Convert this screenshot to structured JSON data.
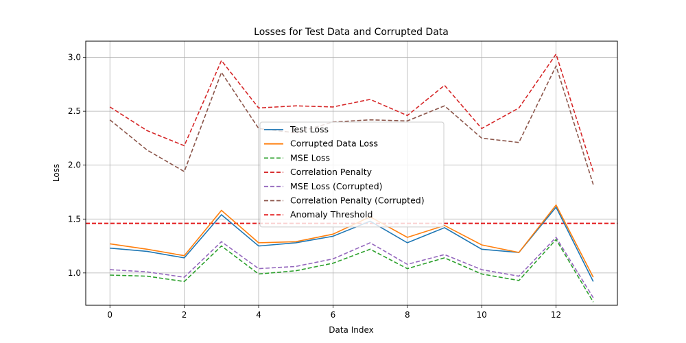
{
  "chart_data": {
    "type": "line",
    "title": "Losses for Test Data and Corrupted Data",
    "xlabel": "Data Index",
    "ylabel": "Loss",
    "xlim": [
      -0.65,
      13.65
    ],
    "ylim": [
      0.7,
      3.15
    ],
    "xticks": [
      0,
      2,
      4,
      6,
      8,
      10,
      12
    ],
    "yticks": [
      1.0,
      1.5,
      2.0,
      2.5,
      3.0
    ],
    "ytick_labels": [
      "1.0",
      "1.5",
      "2.0",
      "2.5",
      "3.0"
    ],
    "grid": true,
    "legend_position": "center",
    "x": [
      0,
      1,
      2,
      3,
      4,
      5,
      6,
      7,
      8,
      9,
      10,
      11,
      12,
      13
    ],
    "series": [
      {
        "name": "Test Loss",
        "color": "#1f77b4",
        "dash": "solid",
        "values": [
          1.23,
          1.2,
          1.14,
          1.54,
          1.25,
          1.28,
          1.34,
          1.48,
          1.28,
          1.42,
          1.22,
          1.19,
          1.61,
          0.92
        ]
      },
      {
        "name": "Corrupted Data Loss",
        "color": "#ff7f0e",
        "dash": "solid",
        "values": [
          1.27,
          1.22,
          1.16,
          1.58,
          1.28,
          1.29,
          1.36,
          1.52,
          1.33,
          1.44,
          1.26,
          1.19,
          1.63,
          0.96
        ]
      },
      {
        "name": "MSE Loss",
        "color": "#2ca02c",
        "dash": "dashed",
        "values": [
          0.98,
          0.97,
          0.92,
          1.25,
          0.99,
          1.02,
          1.09,
          1.22,
          1.04,
          1.14,
          0.99,
          0.93,
          1.31,
          0.73
        ]
      },
      {
        "name": "Correlation Penalty",
        "color": "#d62728",
        "dash": "dashed",
        "values": [
          2.54,
          2.32,
          2.18,
          2.97,
          2.53,
          2.55,
          2.54,
          2.61,
          2.46,
          2.74,
          2.34,
          2.53,
          3.03,
          1.94
        ]
      },
      {
        "name": "MSE Loss (Corrupted)",
        "color": "#9467bd",
        "dash": "dashed",
        "values": [
          1.03,
          1.01,
          0.96,
          1.29,
          1.04,
          1.06,
          1.13,
          1.28,
          1.08,
          1.17,
          1.03,
          0.97,
          1.33,
          0.77
        ]
      },
      {
        "name": "Correlation Penalty (Corrupted)",
        "color": "#8c564b",
        "dash": "dashed",
        "values": [
          2.42,
          2.14,
          1.94,
          2.86,
          2.34,
          2.3,
          2.4,
          2.42,
          2.41,
          2.55,
          2.25,
          2.21,
          2.92,
          1.82
        ]
      }
    ],
    "threshold": {
      "name": "Anomaly Threshold",
      "color": "#e31a1c",
      "dash": "dashed",
      "value": 1.46
    }
  }
}
